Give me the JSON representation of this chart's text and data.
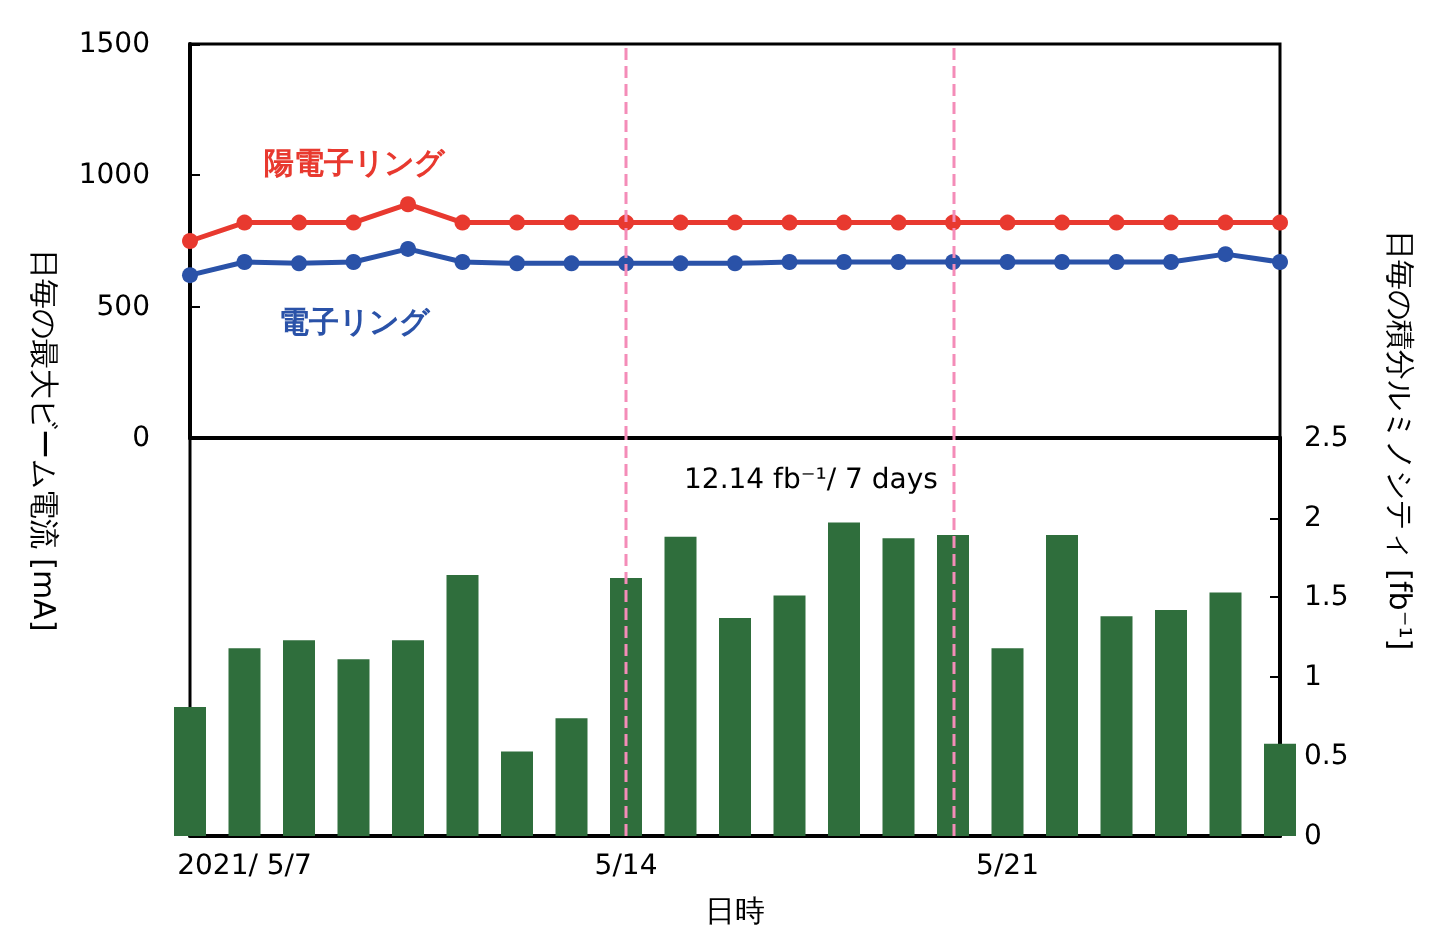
{
  "chart_data": [
    {
      "type": "line",
      "ylabel": "日毎の最大ビーム電流 [mA]",
      "x": [
        "2021-05-06",
        "2021-05-07",
        "2021-05-08",
        "2021-05-09",
        "2021-05-10",
        "2021-05-11",
        "2021-05-12",
        "2021-05-13",
        "2021-05-14",
        "2021-05-15",
        "2021-05-16",
        "2021-05-17",
        "2021-05-18",
        "2021-05-19",
        "2021-05-20",
        "2021-05-21",
        "2021-05-22",
        "2021-05-23",
        "2021-05-24",
        "2021-05-25",
        "2021-05-26"
      ],
      "series": [
        {
          "name": "陽電子リング",
          "color": "#e8392f",
          "values": [
            750,
            820,
            820,
            820,
            890,
            820,
            820,
            820,
            820,
            820,
            820,
            820,
            820,
            820,
            820,
            820,
            820,
            820,
            820,
            820,
            820
          ]
        },
        {
          "name": "電子リング",
          "color": "#2a52a8",
          "values": [
            620,
            670,
            665,
            670,
            720,
            670,
            665,
            665,
            665,
            665,
            665,
            670,
            670,
            670,
            670,
            670,
            670,
            670,
            670,
            700,
            670
          ]
        }
      ],
      "xlim": [
        "2021-05-06",
        "2021-05-26"
      ],
      "ylim": [
        0,
        1500
      ],
      "yticks": [
        0,
        500,
        1000,
        1500
      ],
      "tick_labels": "y",
      "marker": "circle",
      "line_style": "solid",
      "grid": false,
      "ref_lines": [
        {
          "axis": "x",
          "value": "2021-05-14",
          "color": "#f48cb8",
          "line_style": "dashed"
        },
        {
          "axis": "x",
          "value": "2021-05-20",
          "color": "#f48cb8",
          "line_style": "dashed"
        }
      ]
    },
    {
      "type": "bar",
      "ylabel": "日毎の積分ルミノシティ [fb⁻¹]",
      "xlabel": "日時",
      "annotations": [
        "12.14 fb⁻¹/ 7 days"
      ],
      "x": [
        "2021-05-06",
        "2021-05-07",
        "2021-05-08",
        "2021-05-09",
        "2021-05-10",
        "2021-05-11",
        "2021-05-12",
        "2021-05-13",
        "2021-05-14",
        "2021-05-15",
        "2021-05-16",
        "2021-05-17",
        "2021-05-18",
        "2021-05-19",
        "2021-05-20",
        "2021-05-21",
        "2021-05-22",
        "2021-05-23",
        "2021-05-24",
        "2021-05-25",
        "2021-05-26"
      ],
      "values": [
        0.81,
        1.18,
        1.23,
        1.11,
        1.23,
        1.64,
        0.53,
        0.74,
        1.62,
        1.88,
        1.37,
        1.51,
        1.97,
        1.87,
        1.89,
        1.18,
        1.89,
        1.38,
        1.42,
        1.53,
        0.58
      ],
      "color": "#2f6e3c",
      "xlim": [
        "2021-05-06",
        "2021-05-26"
      ],
      "xticks": [
        {
          "value": "2021-05-07",
          "label": "2021/ 5/7"
        },
        {
          "value": "2021-05-14",
          "label": "5/14"
        },
        {
          "value": "2021-05-21",
          "label": "5/21"
        }
      ],
      "ylim": [
        0,
        2.5
      ],
      "yticks": [
        0,
        0.5,
        1,
        1.5,
        2,
        2.5
      ],
      "grid": false,
      "ref_lines": [
        {
          "axis": "x",
          "value": "2021-05-14",
          "color": "#f48cb8",
          "line_style": "dashed"
        },
        {
          "axis": "x",
          "value": "2021-05-20",
          "color": "#f48cb8",
          "line_style": "dashed"
        }
      ]
    }
  ]
}
